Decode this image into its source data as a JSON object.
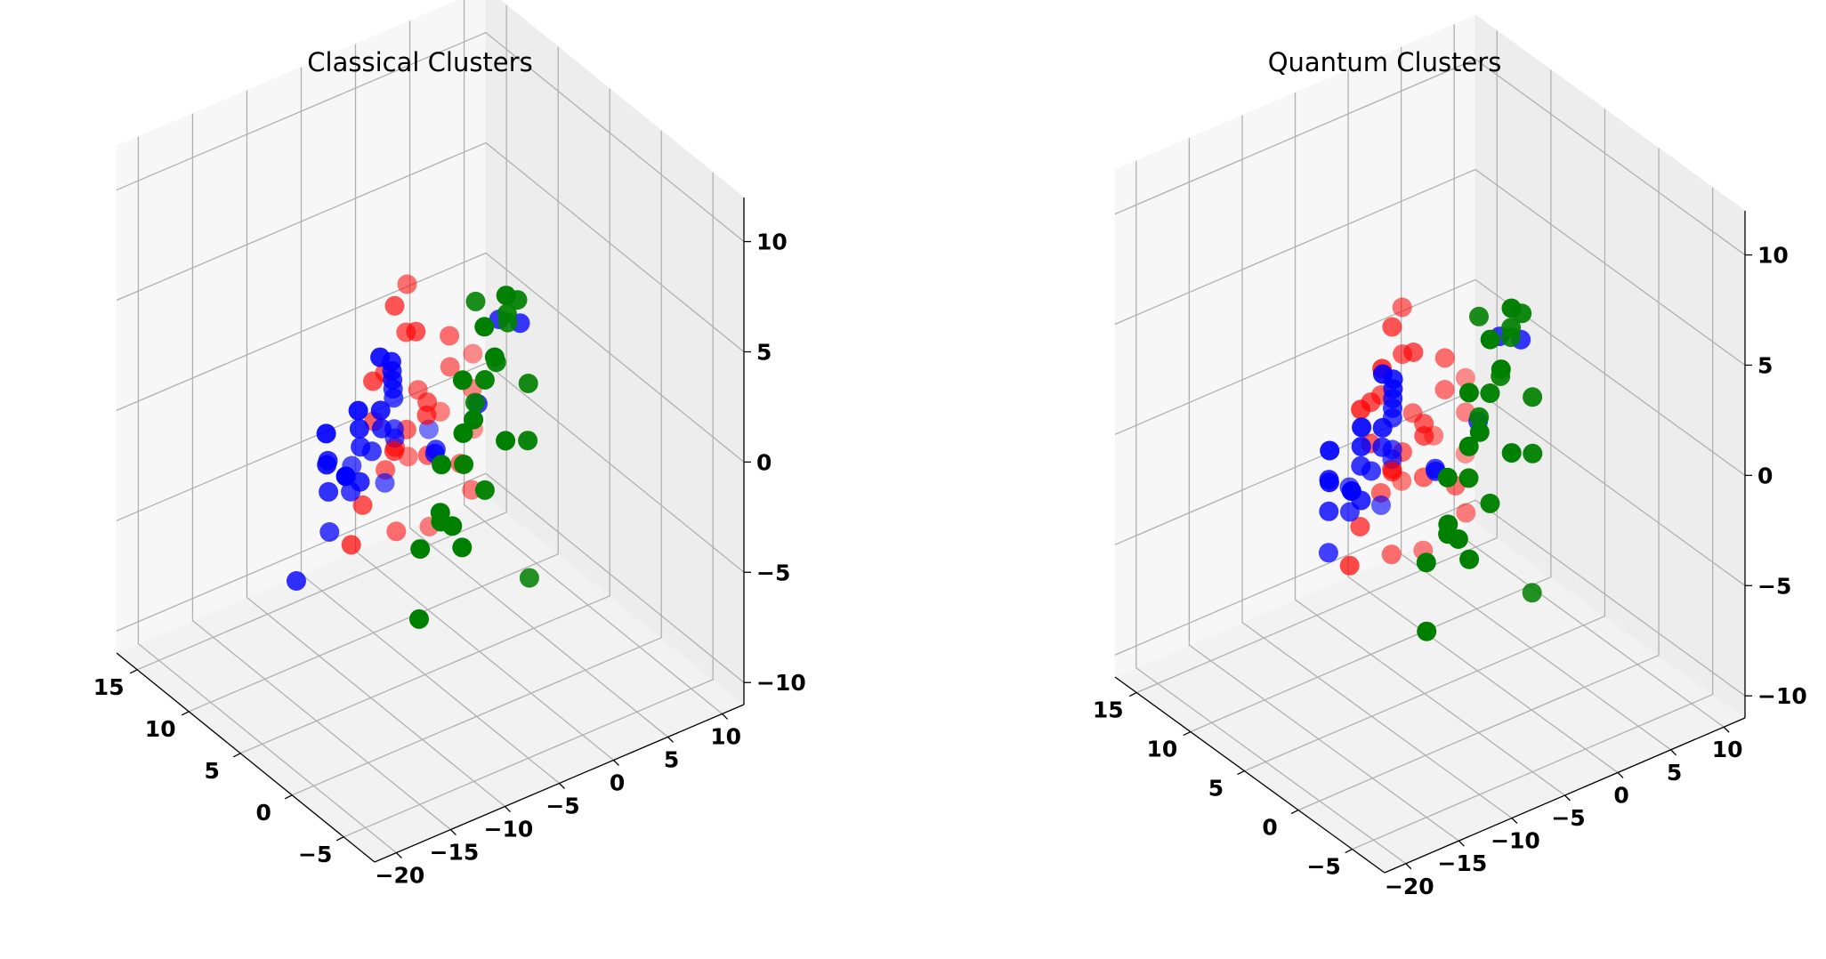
{
  "colors": {
    "cluster_0": "#ff0000",
    "cluster_1": "#008000",
    "cluster_2": "#0000ff"
  },
  "chart_data": [
    {
      "type": "scatter",
      "projection": "3d",
      "title": "Classical Clusters",
      "x_ticks": [
        "−5",
        "0",
        "5",
        "10",
        "15"
      ],
      "y_ticks": [
        "−20",
        "−15",
        "−10",
        "−5",
        "0",
        "5",
        "10"
      ],
      "z_ticks": [
        "−10",
        "−5",
        "0",
        "5",
        "10"
      ],
      "xlim": [
        -8,
        17
      ],
      "ylim": [
        -22,
        12
      ],
      "zlim": [
        -11,
        12
      ],
      "grid": true,
      "series": [
        {
          "color": "#ff0000",
          "points": [
            [
              9,
              -4,
              4
            ],
            [
              8,
              -3,
              3
            ],
            [
              10,
              -2,
              2
            ],
            [
              9,
              -6,
              1
            ],
            [
              11,
              -3,
              0
            ],
            [
              12,
              0,
              3
            ],
            [
              10,
              2,
              1
            ],
            [
              11,
              3,
              -1
            ],
            [
              12,
              1,
              -2
            ],
            [
              9,
              -1,
              -1
            ],
            [
              8,
              -5,
              -2
            ],
            [
              10,
              -3,
              -3
            ],
            [
              11,
              -1,
              -3
            ],
            [
              13,
              4,
              -4
            ],
            [
              12,
              -2,
              -5
            ],
            [
              10,
              -6,
              -5
            ],
            [
              14,
              2,
              -6
            ],
            [
              11,
              5,
              -7
            ],
            [
              13,
              3,
              -9
            ],
            [
              9,
              -8,
              -6
            ],
            [
              12,
              6,
              -3
            ],
            [
              10,
              0,
              -4
            ],
            [
              8,
              -2,
              -1
            ],
            [
              11,
              -4,
              -2
            ],
            [
              14,
              8,
              -6
            ],
            [
              12,
              -1,
              -8
            ],
            [
              10,
              3,
              -5
            ],
            [
              13,
              7,
              -2
            ]
          ]
        },
        {
          "color": "#008000",
          "points": [
            [
              -6,
              -8,
              11
            ],
            [
              -5,
              -6,
              10
            ],
            [
              -7,
              -10,
              9
            ],
            [
              -6,
              -12,
              8
            ],
            [
              -5,
              -9,
              7
            ],
            [
              -4,
              -7,
              7
            ],
            [
              -6,
              -11,
              6
            ],
            [
              -5,
              -5,
              6
            ],
            [
              -7,
              -9,
              5
            ],
            [
              -3,
              -8,
              5
            ],
            [
              -6,
              -6,
              4
            ],
            [
              -5,
              -13,
              4
            ],
            [
              -4,
              -10,
              3
            ],
            [
              -6,
              -14,
              2
            ],
            [
              -5,
              -12,
              1
            ],
            [
              -7,
              -15,
              3
            ],
            [
              -4,
              -6,
              9
            ],
            [
              -3,
              -5,
              8
            ],
            [
              -6,
              -10,
              10
            ],
            [
              -5,
              -11,
              5
            ],
            [
              -7,
              -13,
              1
            ],
            [
              -4,
              -14,
              0
            ],
            [
              -6,
              -16,
              -2
            ],
            [
              -5,
              -9,
              2
            ],
            [
              -3,
              -3,
              -4
            ],
            [
              -2,
              -7,
              9
            ]
          ]
        },
        {
          "color": "#0000ff",
          "points": [
            [
              2,
              -12,
              6
            ],
            [
              3,
              -10,
              5
            ],
            [
              4,
              -9,
              4
            ],
            [
              5,
              -8,
              3
            ],
            [
              3,
              -11,
              3
            ],
            [
              6,
              -7,
              2
            ],
            [
              5,
              -9,
              1
            ],
            [
              7,
              -6,
              1
            ],
            [
              4,
              -12,
              2
            ],
            [
              6,
              -10,
              0
            ],
            [
              8,
              -5,
              -1
            ],
            [
              7,
              -8,
              -1
            ],
            [
              5,
              -11,
              -1
            ],
            [
              9,
              -4,
              -2
            ],
            [
              6,
              -13,
              0
            ],
            [
              8,
              -9,
              -3
            ],
            [
              4,
              -15,
              1
            ],
            [
              3,
              -16,
              3
            ],
            [
              2,
              -14,
              4
            ],
            [
              10,
              -7,
              -3
            ],
            [
              1,
              -2,
              6
            ],
            [
              0,
              -1,
              6
            ],
            [
              7,
              -12,
              -2
            ],
            [
              9,
              -10,
              -5
            ],
            [
              11,
              -3,
              -5
            ],
            [
              3,
              -6,
              0
            ],
            [
              5,
              -4,
              -1
            ],
            [
              2,
              -3,
              2
            ],
            [
              8,
              -14,
              -6
            ],
            [
              -1,
              -18,
              3
            ],
            [
              12,
              2,
              -4
            ]
          ]
        }
      ]
    },
    {
      "type": "scatter",
      "projection": "3d",
      "title": "Quantum Clusters",
      "x_ticks": [
        "−5",
        "0",
        "5",
        "10",
        "15"
      ],
      "y_ticks": [
        "−20",
        "−15",
        "−10",
        "−5",
        "0",
        "5",
        "10"
      ],
      "z_ticks": [
        "−10",
        "−5",
        "0",
        "5",
        "10"
      ],
      "xlim": [
        -8,
        17
      ],
      "ylim": [
        -22,
        12
      ],
      "zlim": [
        -11,
        12
      ],
      "grid": true,
      "series": [
        {
          "color": "#ff0000",
          "points": [
            [
              9,
              -4,
              4
            ],
            [
              8,
              -3,
              3
            ],
            [
              10,
              -2,
              2
            ],
            [
              9,
              -6,
              1
            ],
            [
              11,
              -3,
              0
            ],
            [
              12,
              0,
              3
            ],
            [
              10,
              2,
              1
            ],
            [
              11,
              3,
              -1
            ],
            [
              12,
              1,
              -2
            ],
            [
              9,
              -1,
              -1
            ],
            [
              8,
              -5,
              -2
            ],
            [
              10,
              -3,
              -3
            ],
            [
              11,
              -1,
              -3
            ],
            [
              13,
              4,
              -4
            ],
            [
              12,
              -2,
              -5
            ],
            [
              10,
              -6,
              -5
            ],
            [
              14,
              2,
              -6
            ],
            [
              11,
              5,
              -7
            ],
            [
              13,
              3,
              -9
            ],
            [
              9,
              -8,
              -6
            ],
            [
              12,
              6,
              -3
            ],
            [
              10,
              0,
              -4
            ],
            [
              8,
              -2,
              -1
            ],
            [
              11,
              -4,
              -2
            ],
            [
              14,
              8,
              -6
            ],
            [
              12,
              -1,
              -8
            ],
            [
              10,
              3,
              -5
            ],
            [
              13,
              7,
              -2
            ],
            [
              7,
              -9,
              2
            ],
            [
              6,
              -8,
              4
            ]
          ]
        },
        {
          "color": "#008000",
          "points": [
            [
              -6,
              -8,
              11
            ],
            [
              -5,
              -6,
              10
            ],
            [
              -7,
              -10,
              9
            ],
            [
              -6,
              -12,
              8
            ],
            [
              -5,
              -9,
              7
            ],
            [
              -4,
              -7,
              7
            ],
            [
              -6,
              -11,
              6
            ],
            [
              -5,
              -5,
              6
            ],
            [
              -7,
              -9,
              5
            ],
            [
              -3,
              -8,
              5
            ],
            [
              -6,
              -6,
              4
            ],
            [
              -5,
              -13,
              4
            ],
            [
              -4,
              -10,
              3
            ],
            [
              -6,
              -14,
              2
            ],
            [
              -5,
              -12,
              1
            ],
            [
              -7,
              -15,
              3
            ],
            [
              -4,
              -6,
              9
            ],
            [
              -3,
              -5,
              8
            ],
            [
              -6,
              -10,
              10
            ],
            [
              -5,
              -11,
              5
            ],
            [
              -7,
              -13,
              1
            ],
            [
              -4,
              -14,
              0
            ],
            [
              -6,
              -16,
              -2
            ],
            [
              -5,
              -9,
              2
            ],
            [
              -3,
              -3,
              -4
            ],
            [
              -2,
              -7,
              9
            ]
          ]
        },
        {
          "color": "#0000ff",
          "points": [
            [
              2,
              -12,
              6
            ],
            [
              3,
              -10,
              5
            ],
            [
              4,
              -9,
              4
            ],
            [
              5,
              -8,
              3
            ],
            [
              3,
              -11,
              3
            ],
            [
              6,
              -7,
              2
            ],
            [
              5,
              -9,
              1
            ],
            [
              7,
              -6,
              1
            ],
            [
              4,
              -12,
              2
            ],
            [
              6,
              -10,
              0
            ],
            [
              8,
              -5,
              -1
            ],
            [
              7,
              -8,
              -1
            ],
            [
              5,
              -11,
              -1
            ],
            [
              9,
              -4,
              -2
            ],
            [
              6,
              -13,
              0
            ],
            [
              8,
              -9,
              -3
            ],
            [
              4,
              -15,
              1
            ],
            [
              3,
              -16,
              3
            ],
            [
              2,
              -14,
              4
            ],
            [
              10,
              -7,
              -3
            ],
            [
              1,
              -2,
              6
            ],
            [
              0,
              -1,
              6
            ],
            [
              7,
              -12,
              -2
            ],
            [
              9,
              -10,
              -5
            ],
            [
              11,
              -3,
              -5
            ],
            [
              3,
              -6,
              0
            ],
            [
              5,
              -4,
              -1
            ],
            [
              2,
              -3,
              2
            ],
            [
              -1,
              -18,
              3
            ]
          ]
        }
      ]
    }
  ]
}
